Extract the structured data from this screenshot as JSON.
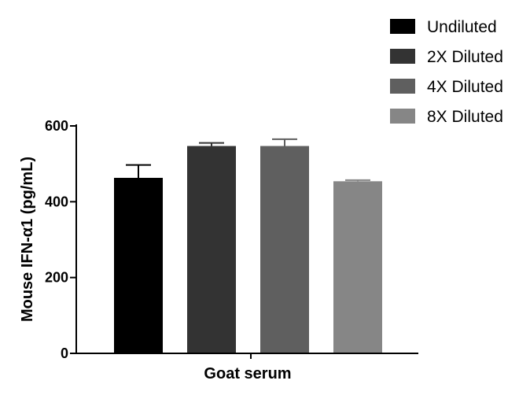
{
  "chart_data": {
    "type": "bar",
    "title": "",
    "xlabel": "Goat serum",
    "ylabel": "Mouse IFN-α1 (pg/mL)",
    "ylim": [
      0,
      600
    ],
    "yticks": [
      "0",
      "200",
      "400",
      "600"
    ],
    "grid": false,
    "legend_position": "top-right",
    "series": [
      {
        "name": "Undiluted",
        "value": 463,
        "error": 34,
        "color": "#000000"
      },
      {
        "name": "2X Diluted",
        "value": 547,
        "error": 8,
        "color": "#333333"
      },
      {
        "name": "4X Diluted",
        "value": 547,
        "error": 18,
        "color": "#5f5f5f"
      },
      {
        "name": "8X Diluted",
        "value": 454,
        "error": 3,
        "color": "#868686"
      }
    ]
  }
}
